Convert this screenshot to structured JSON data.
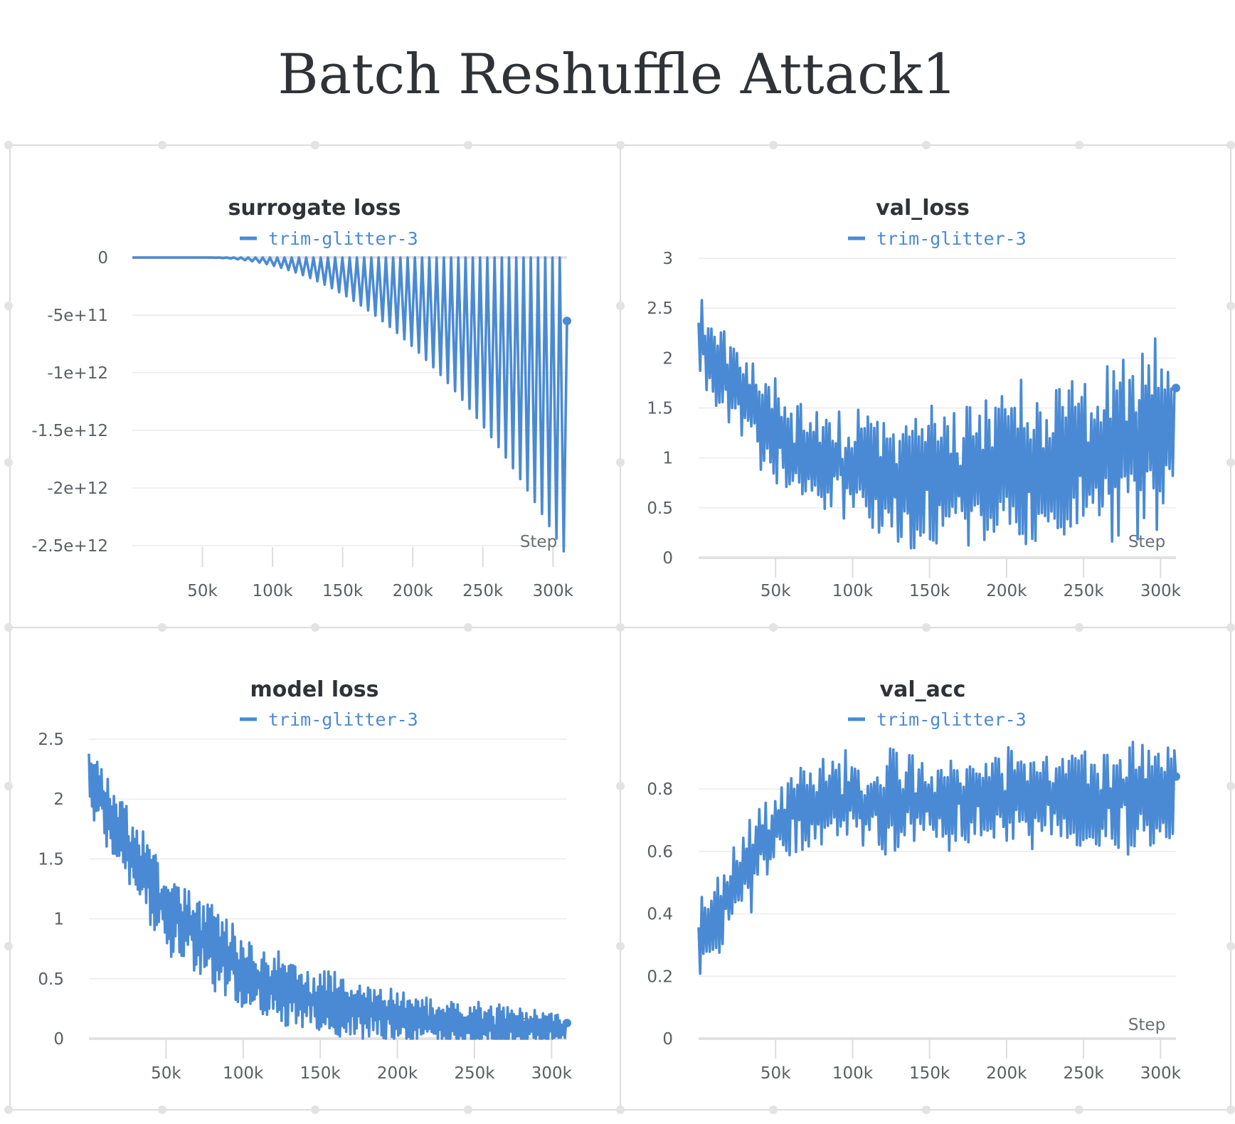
{
  "report": {
    "title": "Batch Reshuffle Attack1"
  },
  "colors": {
    "series": "#4a8ad4",
    "panel_border": "#dcdcdc",
    "grid": "#ececec",
    "axis": "#e2e2e2",
    "title_text": "#2f3337"
  },
  "chart_data": [
    {
      "id": "surrogate_loss",
      "type": "line",
      "title": "surrogate loss",
      "legend": [
        "trim-glitter-3"
      ],
      "legend_placement": "top-center",
      "xlabel": "Step",
      "ylabel": "",
      "xlim": [
        0,
        310000
      ],
      "ylim": [
        -2500000000000.0,
        0
      ],
      "xticks": [
        50000,
        100000,
        150000,
        200000,
        250000,
        300000
      ],
      "xtick_labels": [
        "50k",
        "100k",
        "150k",
        "200k",
        "250k",
        "300k"
      ],
      "yticks": [
        0,
        -500000000000.0,
        -1000000000000.0,
        -1500000000000.0,
        -2000000000000.0,
        -2500000000000.0
      ],
      "ytick_labels": [
        "0",
        "-5e+11",
        "-1e+12",
        "-1.5e+12",
        "-2e+12",
        "-2.5e+12"
      ],
      "grid": true,
      "series": [
        {
          "name": "trim-glitter-3",
          "pattern": "sawtooth",
          "x_range": [
            0,
            310000
          ],
          "cycles": 60,
          "dip_start_x": 50000,
          "dip_growth": 2.2,
          "dip_max": -2600000000000.0,
          "end_value": -550000000000.0
        }
      ]
    },
    {
      "id": "val_loss",
      "type": "line",
      "title": "val_loss",
      "legend": [
        "trim-glitter-3"
      ],
      "legend_placement": "top-center",
      "xlabel": "Step",
      "ylabel": "",
      "xlim": [
        0,
        310000
      ],
      "ylim": [
        0,
        3
      ],
      "xticks": [
        50000,
        100000,
        150000,
        200000,
        250000,
        300000
      ],
      "xtick_labels": [
        "50k",
        "100k",
        "150k",
        "200k",
        "250k",
        "300k"
      ],
      "yticks": [
        0,
        0.5,
        1,
        1.5,
        2,
        2.5,
        3
      ],
      "ytick_labels": [
        "0",
        "0.5",
        "1",
        "1.5",
        "2",
        "2.5",
        "3"
      ],
      "grid": true,
      "series": [
        {
          "name": "trim-glitter-3",
          "pattern": "noisy_trend",
          "x_range": [
            0,
            310000
          ],
          "points": 300,
          "trend": [
            [
              0,
              2.2
            ],
            [
              60000,
              1.1
            ],
            [
              130000,
              0.75
            ],
            [
              200000,
              0.9
            ],
            [
              260000,
              1.1
            ],
            [
              310000,
              1.2
            ]
          ],
          "amplitude": [
            [
              0,
              0.45
            ],
            [
              100000,
              0.55
            ],
            [
              200000,
              0.75
            ],
            [
              310000,
              0.9
            ]
          ],
          "clip": [
            0.05,
            3.0
          ],
          "seed": 11,
          "end_value": 1.7
        }
      ]
    },
    {
      "id": "model_loss",
      "type": "line",
      "title": "model loss",
      "legend": [
        "trim-glitter-3"
      ],
      "legend_placement": "top-center",
      "xlabel": "Step",
      "ylabel": "",
      "xlim": [
        0,
        310000
      ],
      "ylim": [
        0,
        2.5
      ],
      "xticks": [
        50000,
        100000,
        150000,
        200000,
        250000,
        300000
      ],
      "xtick_labels": [
        "50k",
        "100k",
        "150k",
        "200k",
        "250k",
        "300k"
      ],
      "yticks": [
        0,
        0.5,
        1,
        1.5,
        2,
        2.5
      ],
      "ytick_labels": [
        "0",
        "0.5",
        "1",
        "1.5",
        "2",
        "2.5"
      ],
      "grid": true,
      "series": [
        {
          "name": "trim-glitter-3",
          "pattern": "noisy_trend",
          "x_range": [
            0,
            310000
          ],
          "points": 460,
          "trend": [
            [
              0,
              2.2
            ],
            [
              20000,
              1.7
            ],
            [
              50000,
              1.1
            ],
            [
              100000,
              0.55
            ],
            [
              150000,
              0.3
            ],
            [
              200000,
              0.18
            ],
            [
              250000,
              0.1
            ],
            [
              310000,
              0.08
            ]
          ],
          "amplitude": [
            [
              0,
              0.3
            ],
            [
              60000,
              0.35
            ],
            [
              150000,
              0.25
            ],
            [
              310000,
              0.15
            ]
          ],
          "clip": [
            0.0,
            2.5
          ],
          "seed": 7,
          "end_value": 0.13
        }
      ]
    },
    {
      "id": "val_acc",
      "type": "line",
      "title": "val_acc",
      "legend": [
        "trim-glitter-3"
      ],
      "legend_placement": "top-center",
      "xlabel": "Step",
      "ylabel": "",
      "xlim": [
        0,
        310000
      ],
      "ylim": [
        0,
        0.96
      ],
      "xticks": [
        50000,
        100000,
        150000,
        200000,
        250000,
        300000
      ],
      "xtick_labels": [
        "50k",
        "100k",
        "150k",
        "200k",
        "250k",
        "300k"
      ],
      "yticks": [
        0,
        0.2,
        0.4,
        0.6,
        0.8
      ],
      "ytick_labels": [
        "0",
        "0.2",
        "0.4",
        "0.6",
        "0.8"
      ],
      "grid": true,
      "series": [
        {
          "name": "trim-glitter-3",
          "pattern": "noisy_trend",
          "x_range": [
            0,
            310000
          ],
          "points": 300,
          "trend": [
            [
              0,
              0.3
            ],
            [
              30000,
              0.55
            ],
            [
              60000,
              0.72
            ],
            [
              100000,
              0.76
            ],
            [
              310000,
              0.78
            ]
          ],
          "amplitude": [
            [
              0,
              0.15
            ],
            [
              60000,
              0.14
            ],
            [
              310000,
              0.17
            ]
          ],
          "clip": [
            0.15,
            0.96
          ],
          "seed": 23,
          "end_value": 0.84
        }
      ]
    }
  ]
}
